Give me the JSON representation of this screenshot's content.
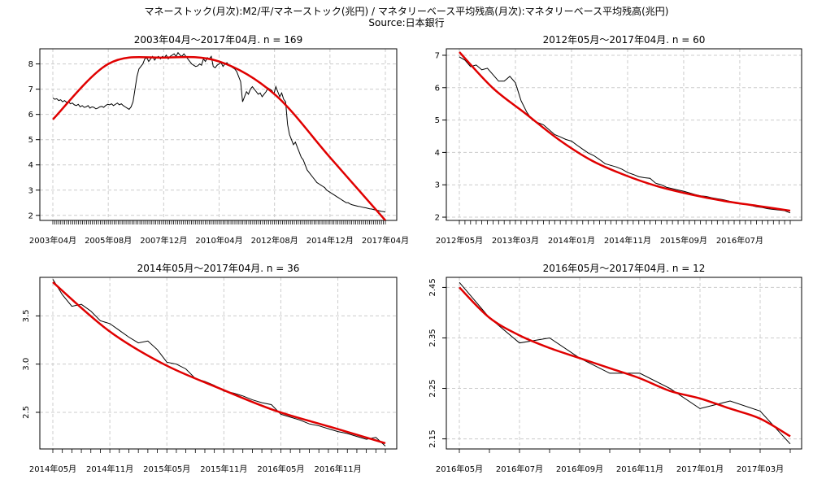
{
  "header": {
    "title": "マネーストック(月次):M2/平/マネーストック(兆円) / マネタリーベース平均残高(月次):マネタリーベース平均残高(兆円)",
    "source": "Source:日本銀行"
  },
  "colors": {
    "data_line": "#000000",
    "fit_line": "#e00000",
    "grid": "#cccccc"
  },
  "chart_data": [
    {
      "type": "line",
      "title": "2003年04月～2017年04月. n = 169",
      "n": 169,
      "x_tick_labels": [
        "2003年04月",
        "2005年08月",
        "2007年12月",
        "2010年04月",
        "2012年08月",
        "2014年12月",
        "2017年04月"
      ],
      "x_tick_index": [
        0,
        28,
        56,
        84,
        112,
        140,
        168
      ],
      "yticks": [
        2,
        3,
        4,
        5,
        6,
        7,
        8
      ],
      "ylim": [
        1.8,
        8.6
      ],
      "grid": true,
      "series": [
        {
          "values": [
            6.65,
            6.6,
            6.62,
            6.55,
            6.58,
            6.5,
            6.55,
            6.48,
            6.5,
            6.42,
            6.45,
            6.38,
            6.35,
            6.4,
            6.3,
            6.35,
            6.28,
            6.3,
            6.35,
            6.25,
            6.3,
            6.28,
            6.22,
            6.25,
            6.3,
            6.32,
            6.28,
            6.35,
            6.4,
            6.38,
            6.42,
            6.35,
            6.4,
            6.45,
            6.38,
            6.42,
            6.35,
            6.3,
            6.25,
            6.2,
            6.3,
            6.5,
            7.0,
            7.5,
            7.8,
            7.9,
            8.0,
            8.2,
            8.25,
            8.1,
            8.2,
            8.3,
            8.15,
            8.25,
            8.3,
            8.2,
            8.3,
            8.25,
            8.35,
            8.2,
            8.3,
            8.35,
            8.4,
            8.3,
            8.45,
            8.35,
            8.3,
            8.4,
            8.3,
            8.2,
            8.1,
            8.0,
            7.95,
            7.9,
            7.92,
            8.0,
            7.95,
            8.2,
            8.1,
            8.25,
            8.2,
            8.3,
            7.9,
            7.85,
            7.95,
            8.0,
            8.05,
            7.9,
            8.0,
            8.05,
            7.95,
            7.9,
            7.85,
            7.8,
            7.7,
            7.5,
            7.3,
            6.5,
            6.7,
            6.9,
            6.8,
            7.0,
            7.1,
            7.0,
            6.9,
            6.8,
            6.85,
            6.7,
            6.8,
            6.9,
            7.05,
            7.0,
            6.95,
            6.8,
            7.1,
            6.9,
            6.7,
            6.85,
            6.6,
            6.5,
            5.6,
            5.2,
            5.0,
            4.8,
            4.9,
            4.7,
            4.5,
            4.3,
            4.2,
            4.0,
            3.8,
            3.7,
            3.6,
            3.5,
            3.4,
            3.3,
            3.25,
            3.2,
            3.15,
            3.1,
            3.0,
            2.95,
            2.9,
            2.85,
            2.8,
            2.75,
            2.7,
            2.65,
            2.6,
            2.55,
            2.5,
            2.5,
            2.45,
            2.42,
            2.4,
            2.38,
            2.36,
            2.35,
            2.33,
            2.31,
            2.3,
            2.28,
            2.26,
            2.25,
            2.23,
            2.21,
            2.2,
            2.18,
            2.16,
            2.15,
            2.13
          ]
        },
        {
          "name": "",
          "fit": true,
          "values": [
            5.8,
            8.0,
            8.25,
            8.1,
            6.8,
            4.3,
            1.8
          ]
        }
      ]
    },
    {
      "type": "line",
      "title": "2012年05月～2017年04月. n = 60",
      "n": 60,
      "x_tick_labels": [
        "2012年05月",
        "2013年03月",
        "2014年01月",
        "2014年11月",
        "2015年09月",
        "2016年07月"
      ],
      "x_tick_index": [
        0,
        10,
        20,
        30,
        40,
        50
      ],
      "yticks": [
        2,
        3,
        4,
        5,
        6,
        7
      ],
      "ylim": [
        1.9,
        7.2
      ],
      "grid": true,
      "series": [
        {
          "values": [
            6.95,
            6.85,
            6.65,
            6.7,
            6.55,
            6.6,
            6.4,
            6.2,
            6.2,
            6.35,
            6.15,
            5.6,
            5.25,
            5.0,
            4.92,
            4.85,
            4.7,
            4.55,
            4.48,
            4.4,
            4.35,
            4.22,
            4.1,
            3.98,
            3.9,
            3.78,
            3.65,
            3.6,
            3.55,
            3.48,
            3.38,
            3.32,
            3.25,
            3.22,
            3.2,
            3.05,
            3.0,
            2.92,
            2.88,
            2.84,
            2.8,
            2.75,
            2.7,
            2.66,
            2.64,
            2.6,
            2.57,
            2.54,
            2.5,
            2.46,
            2.42,
            2.4,
            2.36,
            2.32,
            2.3,
            2.26,
            2.24,
            2.22,
            2.2,
            2.13
          ]
        },
        {
          "name": "",
          "fit": true,
          "values": [
            7.1,
            6.0,
            5.2,
            4.4,
            3.75,
            3.3,
            2.95,
            2.7,
            2.5,
            2.35,
            2.2
          ]
        }
      ]
    },
    {
      "type": "line",
      "title": "2014年05月～2017年04月. n = 36",
      "n": 36,
      "x_tick_labels": [
        "2014年05月",
        "2014年11月",
        "2015年05月",
        "2015年11月",
        "2016年05月",
        "2016年11月"
      ],
      "x_tick_index": [
        0,
        6,
        12,
        18,
        24,
        30
      ],
      "yticks": [
        2.5,
        3.0,
        3.5
      ],
      "ylim": [
        2.12,
        3.9
      ],
      "grid": true,
      "series": [
        {
          "values": [
            3.88,
            3.72,
            3.6,
            3.62,
            3.55,
            3.45,
            3.42,
            3.35,
            3.28,
            3.22,
            3.24,
            3.15,
            3.02,
            3.0,
            2.95,
            2.85,
            2.82,
            2.78,
            2.72,
            2.7,
            2.67,
            2.63,
            2.6,
            2.58,
            2.48,
            2.45,
            2.42,
            2.38,
            2.36,
            2.33,
            2.3,
            2.28,
            2.25,
            2.22,
            2.24,
            2.15
          ]
        },
        {
          "name": "",
          "fit": true,
          "values": [
            3.85,
            3.35,
            3.0,
            2.75,
            2.52,
            2.35,
            2.18
          ]
        }
      ]
    },
    {
      "type": "line",
      "title": "2016年05月～2017年04月. n = 12",
      "n": 12,
      "x_tick_labels": [
        "2016年05月",
        "2016年07月",
        "2016年09月",
        "2016年11月",
        "2017年01月",
        "2017年03月"
      ],
      "x_tick_index": [
        0,
        2,
        4,
        6,
        8,
        10
      ],
      "yticks": [
        2.15,
        2.25,
        2.35,
        2.45
      ],
      "ylim": [
        2.13,
        2.47
      ],
      "grid": true,
      "series": [
        {
          "values": [
            2.46,
            2.39,
            2.34,
            2.35,
            2.31,
            2.28,
            2.28,
            2.25,
            2.21,
            2.225,
            2.205,
            2.14
          ]
        },
        {
          "name": "",
          "fit": true,
          "values": [
            2.45,
            2.39,
            2.355,
            2.33,
            2.31,
            2.29,
            2.27,
            2.245,
            2.23,
            2.21,
            2.19,
            2.155
          ]
        }
      ]
    }
  ]
}
